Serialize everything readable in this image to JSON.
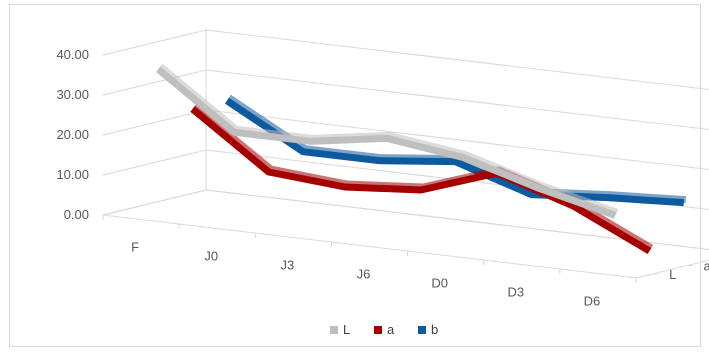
{
  "chart_data": {
    "type": "line",
    "style": "3d-line",
    "title": "",
    "xlabel": "",
    "ylabel": "",
    "categories": [
      "F",
      "J0",
      "J3",
      "J6",
      "D0",
      "D3",
      "D6"
    ],
    "y_ticks": [
      "0.00",
      "10.00",
      "20.00",
      "30.00",
      "40.00"
    ],
    "ylim": [
      0,
      40
    ],
    "depth_labels": [
      "L",
      "a",
      "b"
    ],
    "grid": true,
    "legend": "bottom",
    "series": [
      {
        "name": "L",
        "color": "#bfbfbf",
        "values": [
          36.5,
          23.0,
          23.0,
          26.0,
          23.5,
          18.0,
          13.5
        ]
      },
      {
        "name": "a",
        "color": "#a50000",
        "values": [
          24.5,
          11.0,
          9.5,
          11.0,
          17.5,
          11.5,
          2.5
        ]
      },
      {
        "name": "b",
        "color": "#0d5a9e",
        "values": [
          24.5,
          14.0,
          14.0,
          16.0,
          10.0,
          11.5,
          12.5
        ]
      }
    ]
  }
}
